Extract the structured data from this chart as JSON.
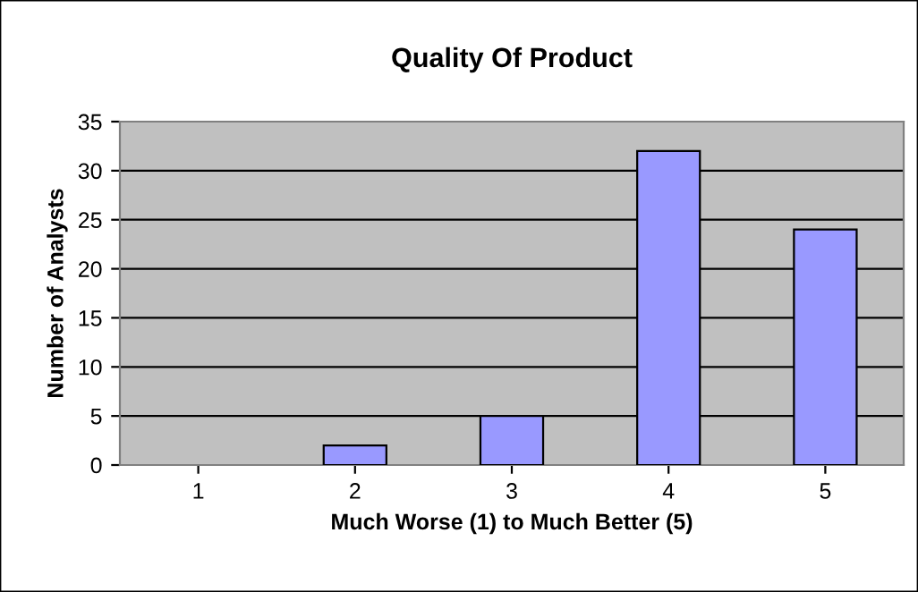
{
  "chart_data": {
    "type": "bar",
    "title": "Quality Of Product",
    "xlabel": "Much Worse (1) to Much Better (5)",
    "ylabel": "Number of Analysts",
    "categories": [
      "1",
      "2",
      "3",
      "4",
      "5"
    ],
    "values": [
      0,
      2,
      5,
      32,
      24
    ],
    "color": "#9999ff",
    "ylim": [
      0,
      35
    ],
    "yticks": [
      0,
      5,
      10,
      15,
      20,
      25,
      30,
      35
    ],
    "grid": "y",
    "legend": false
  }
}
